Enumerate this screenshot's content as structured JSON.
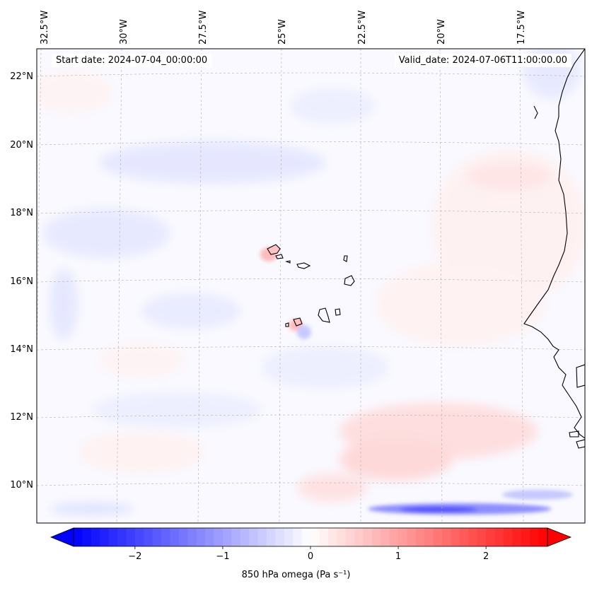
{
  "map": {
    "start_date": "Start date: 2024-07-04_00:00:00",
    "valid_date": "Valid_date: 2024-07-06T11:00:00.00",
    "lon_labels": [
      "32.5°W",
      "30°W",
      "27.5°W",
      "25°W",
      "22.5°W",
      "20°W",
      "17.5°W"
    ],
    "lat_labels": [
      "22°N",
      "20°N",
      "18°N",
      "16°N",
      "14°N",
      "12°N",
      "10°N"
    ]
  },
  "colorbar": {
    "label": "850 hPa omega (Pa s⁻¹)",
    "ticks": [
      "−2",
      "−1",
      "0",
      "1",
      "2"
    ],
    "tick_values": [
      -2,
      -1,
      0,
      1,
      2
    ],
    "range": [
      -2.7,
      2.7
    ],
    "colors": {
      "low": "#0000ff",
      "mid": "#ffffff",
      "high": "#ff0000"
    }
  },
  "colors": {
    "frame": "#000000",
    "coast": "#000000",
    "gridline": "#b0b0b0"
  }
}
